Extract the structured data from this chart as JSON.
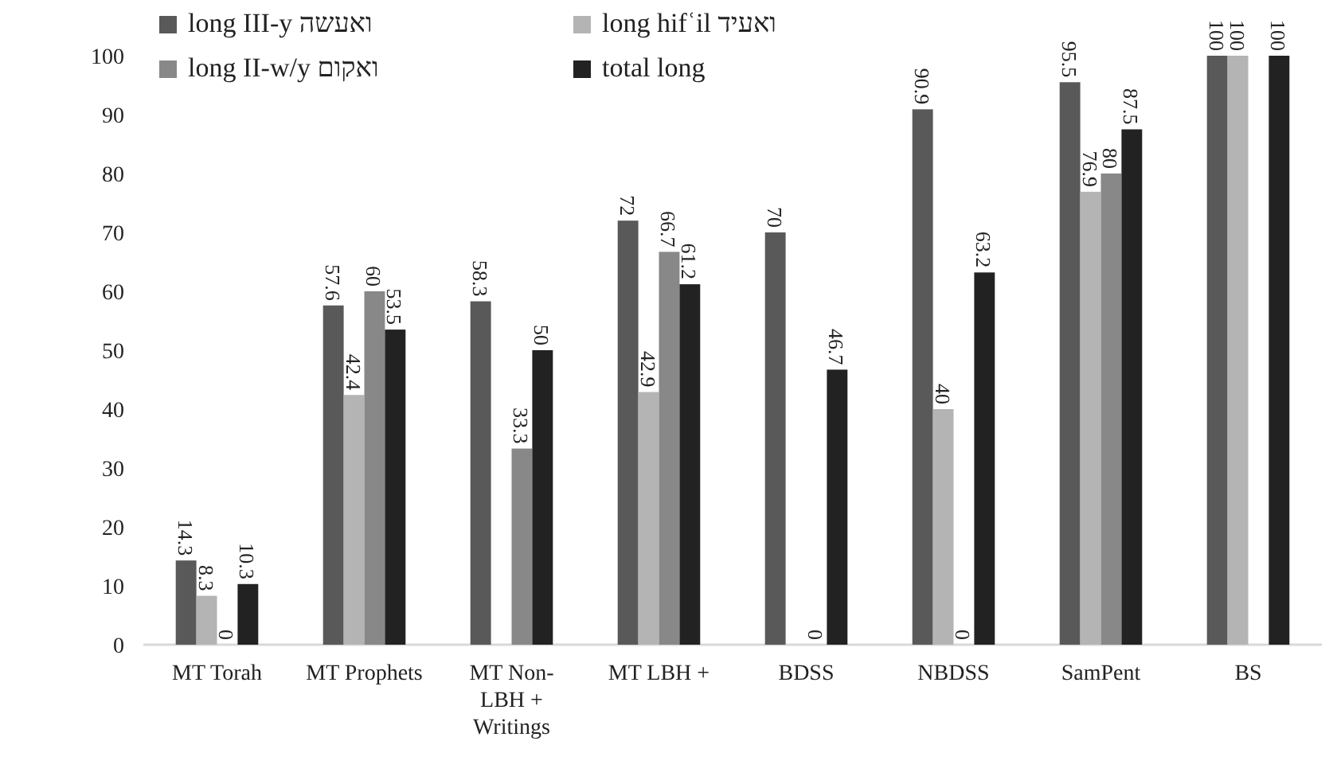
{
  "chart_data": {
    "type": "bar",
    "categories": [
      "MT Torah",
      "MT Prophets",
      "MT Non-LBH + Writings",
      "MT LBH +",
      "BDSS",
      "NBDSS",
      "SamPent",
      "BS"
    ],
    "series": [
      {
        "name": "long III-y ואעשה",
        "color": "#595959",
        "values": [
          14.3,
          57.6,
          58.3,
          72,
          70,
          90.9,
          95.5,
          100
        ]
      },
      {
        "name": "long hifʿil ואעיד",
        "color": "#b4b4b4",
        "values": [
          8.3,
          42.4,
          null,
          42.9,
          null,
          40,
          76.9,
          100
        ]
      },
      {
        "name": "long II-w/y ואקום",
        "color": "#888888",
        "values": [
          0,
          60,
          33.3,
          66.7,
          0,
          0,
          80,
          null
        ]
      },
      {
        "name": "total long",
        "color": "#222222",
        "values": [
          10.3,
          53.5,
          50,
          61.2,
          46.7,
          63.2,
          87.5,
          100
        ]
      }
    ],
    "ylim": [
      0,
      100
    ],
    "yticks": [
      0,
      10,
      20,
      30,
      40,
      50,
      60,
      70,
      80,
      90,
      100
    ],
    "data_labels": true,
    "legend": "top",
    "grid": false
  }
}
